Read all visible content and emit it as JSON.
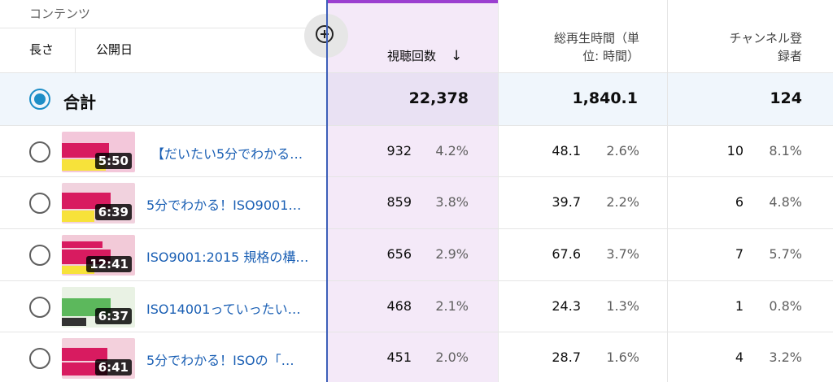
{
  "header": {
    "content_label": "コンテンツ",
    "length_label": "長さ",
    "published_label": "公開日",
    "views_label": "視聴回数",
    "sort_arrow": "↓",
    "watch_time_label_1": "総再生時間（単",
    "watch_time_label_2": "位: 時間）",
    "subscribers_label_1": "チャンネル登",
    "subscribers_label_2": "録者"
  },
  "total": {
    "label": "合計",
    "views": "22,378",
    "watch_time": "1,840.1",
    "subscribers": "124"
  },
  "rows": [
    {
      "duration": "5:50",
      "title": "【だいたい5分でわかる…",
      "views": "932",
      "views_pct": "4.2%",
      "watch": "48.1",
      "watch_pct": "2.6%",
      "subs": "10",
      "subs_pct": "8.1%"
    },
    {
      "duration": "6:39",
      "title": "5分でわかる！ISO9001…",
      "views": "859",
      "views_pct": "3.8%",
      "watch": "39.7",
      "watch_pct": "2.2%",
      "subs": "6",
      "subs_pct": "4.8%"
    },
    {
      "duration": "12:41",
      "title": "ISO9001:2015 規格の構…",
      "views": "656",
      "views_pct": "2.9%",
      "watch": "67.6",
      "watch_pct": "3.7%",
      "subs": "7",
      "subs_pct": "5.7%"
    },
    {
      "duration": "6:37",
      "title": "ISO14001っていったい…",
      "views": "468",
      "views_pct": "2.1%",
      "watch": "24.3",
      "watch_pct": "1.3%",
      "subs": "1",
      "subs_pct": "0.8%"
    },
    {
      "duration": "6:41",
      "title": "5分でわかる！ISOの「…",
      "views": "451",
      "views_pct": "2.0%",
      "watch": "28.7",
      "watch_pct": "1.6%",
      "subs": "4",
      "subs_pct": "3.2%"
    }
  ],
  "colors": {
    "accent_purple": "#9b3fd0",
    "views_column_bg": "#f4e9f8",
    "link_blue": "#1a5fb4",
    "radio_selected": "#1e8ec7"
  }
}
